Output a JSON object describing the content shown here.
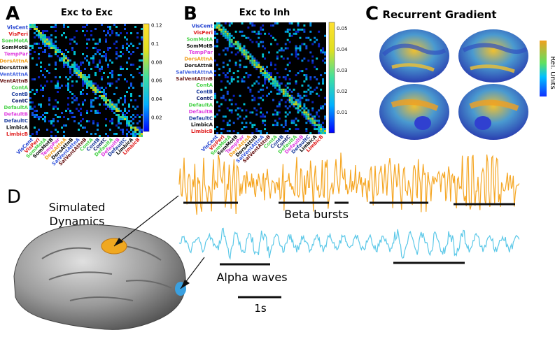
{
  "panels": {
    "a": {
      "letter": "A",
      "title": "Exc to Exc",
      "colorbar": {
        "ticks": [
          "0.12",
          "0.1",
          "0.08",
          "0.06",
          "0.04",
          "0.02"
        ],
        "colors": [
          "#0000ff",
          "#00a0ff",
          "#00ffff",
          "#50ff50",
          "#ffff00",
          "#ffa000"
        ]
      }
    },
    "b": {
      "letter": "B",
      "title": "Exc to Inh",
      "colorbar": {
        "ticks": [
          "0.05",
          "0.04",
          "0.03",
          "0.02",
          "0.01"
        ],
        "colors": [
          "#0000ff",
          "#00a0ff",
          "#00ffff",
          "#50ff50",
          "#ffff00",
          "#ffa000"
        ]
      }
    },
    "c": {
      "letter": "C",
      "title": "Recurrent Gradient",
      "colorbar_label": "Rel. Units"
    },
    "d": {
      "letter": "D",
      "title_line1": "Simulated",
      "title_line2": "Dynamics",
      "beta_label": "Beta bursts",
      "alpha_label": "Alpha waves",
      "scale_label": "1s",
      "beta_color": "#f5a623",
      "alpha_color": "#5bc8e8"
    }
  },
  "networks": [
    {
      "name": "VisCent",
      "color": "#1f3fd0"
    },
    {
      "name": "VisPeri",
      "color": "#e02020"
    },
    {
      "name": "SomMotA",
      "color": "#4ad34a"
    },
    {
      "name": "SomMotB",
      "color": "#111111"
    },
    {
      "name": "TempPar",
      "color": "#e040e0"
    },
    {
      "name": "DorsAttnA",
      "color": "#f0a020"
    },
    {
      "name": "DorsAttnB",
      "color": "#111111"
    },
    {
      "name": "SalVentAttnA",
      "color": "#4060e0"
    },
    {
      "name": "SalVentAttnB",
      "color": "#6b1a1a"
    },
    {
      "name": "ContA",
      "color": "#4ad34a"
    },
    {
      "name": "ContB",
      "color": "#1f3fa0"
    },
    {
      "name": "ContC",
      "color": "#0a1a6a"
    },
    {
      "name": "DefaultA",
      "color": "#4ad34a"
    },
    {
      "name": "DefaultB",
      "color": "#e040e0"
    },
    {
      "name": "DefaultC",
      "color": "#1f3fa0"
    },
    {
      "name": "LimbicA",
      "color": "#111111"
    },
    {
      "name": "LimbicB",
      "color": "#e02020"
    }
  ]
}
